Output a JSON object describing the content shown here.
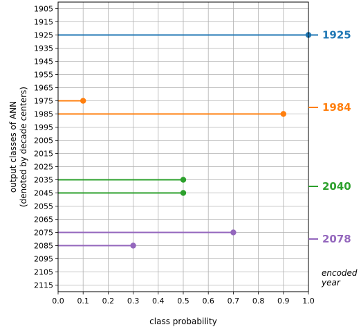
{
  "chart_data": {
    "type": "lollipop",
    "xlabel": "class probability",
    "ylabel": [
      "output classes of ANN",
      "(denoted by decade centers)"
    ],
    "xlim": [
      0.0,
      1.0
    ],
    "x_ticks": [
      "0.0",
      "0.1",
      "0.2",
      "0.3",
      "0.4",
      "0.5",
      "0.6",
      "0.7",
      "0.8",
      "0.9",
      "1.0"
    ],
    "categories": [
      "1905",
      "1915",
      "1925",
      "1935",
      "1945",
      "1955",
      "1965",
      "1975",
      "1985",
      "1995",
      "2005",
      "2015",
      "2025",
      "2035",
      "2045",
      "2055",
      "2065",
      "2075",
      "2085",
      "2095",
      "2105",
      "2115"
    ],
    "grid": true,
    "series": [
      {
        "encoded_year": "1925",
        "color": "#1f77b4",
        "points": [
          {
            "category": "1925",
            "value": 1.0
          }
        ]
      },
      {
        "encoded_year": "1984",
        "color": "#ff7f0e",
        "points": [
          {
            "category": "1975",
            "value": 0.1
          },
          {
            "category": "1985",
            "value": 0.9
          }
        ]
      },
      {
        "encoded_year": "2040",
        "color": "#2ca02c",
        "points": [
          {
            "category": "2035",
            "value": 0.5
          },
          {
            "category": "2045",
            "value": 0.5
          }
        ]
      },
      {
        "encoded_year": "2078",
        "color": "#9467bd",
        "points": [
          {
            "category": "2075",
            "value": 0.7
          },
          {
            "category": "2085",
            "value": 0.3
          }
        ]
      }
    ],
    "right_annotation": [
      "encoded",
      "year"
    ]
  }
}
